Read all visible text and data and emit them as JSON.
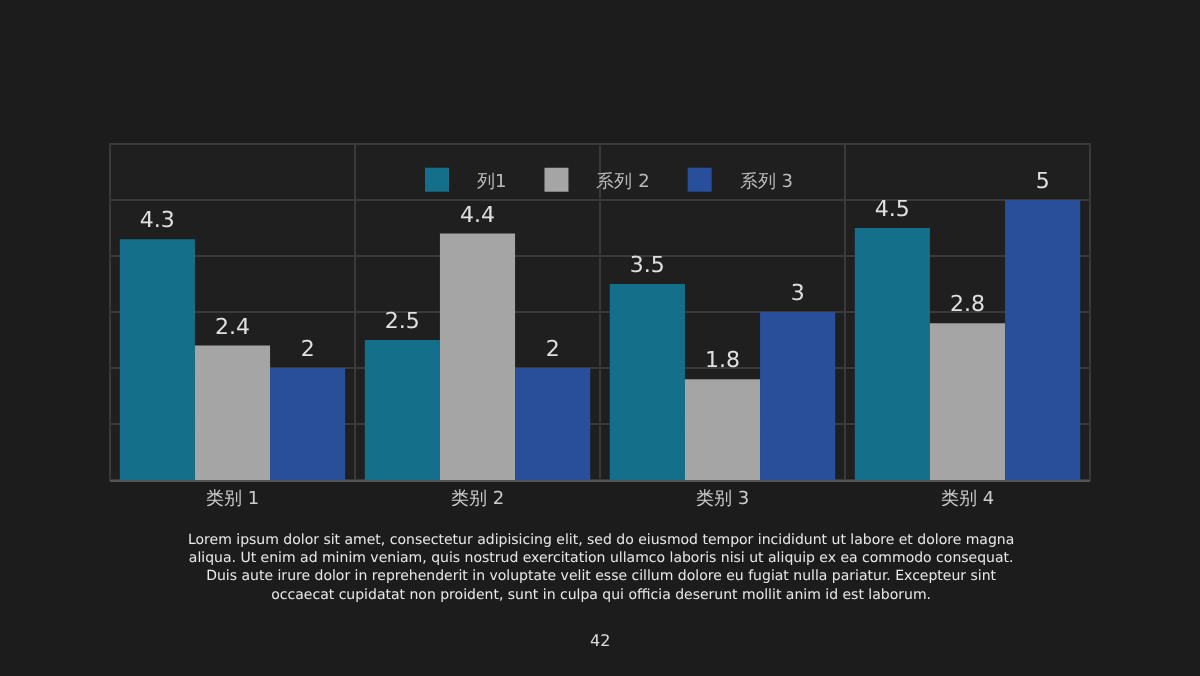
{
  "chart_data": {
    "type": "bar",
    "categories": [
      "类别 1",
      "类别 2",
      "类别 3",
      "类别 4"
    ],
    "series": [
      {
        "name": "列1",
        "color": "#136f8a",
        "values": [
          4.3,
          2.5,
          3.5,
          4.5
        ]
      },
      {
        "name": "系列 2",
        "color": "#a5a5a5",
        "values": [
          2.4,
          4.4,
          1.8,
          2.8
        ]
      },
      {
        "name": "系列 3",
        "color": "#2a4f9a",
        "values": [
          2,
          2,
          3,
          5
        ]
      }
    ],
    "ylim": [
      0,
      6
    ],
    "yticks": [
      {
        "value": 0,
        "label": null
      },
      {
        "value": 1,
        "label": null
      },
      {
        "value": 2,
        "label": null
      },
      {
        "value": 3,
        "label": null
      },
      {
        "value": 4,
        "label": null
      },
      {
        "value": 5,
        "label": null
      },
      {
        "value": 6,
        "label": null
      }
    ],
    "tick_labels": "x",
    "grid": true,
    "legend": "top",
    "data_labels": true,
    "annotations": [
      "Lorem ipsum dolor sit amet, consectetur adipisicing elit, sed do eiusmod tempor incididunt ut labore et dolore magna aliqua. Ut enim ad minim veniam, quis nostrud exercitation ullamco laboris nisi ut aliquip ex ea commodo consequat. Duis aute irure dolor in reprehenderit in voluptate velit esse cillum dolore eu fugiat nulla pariatur. Excepteur sint occaecat cupidatat non proident, sunt in culpa qui officia deserunt mollit anim id est laborum.",
      "42"
    ]
  }
}
